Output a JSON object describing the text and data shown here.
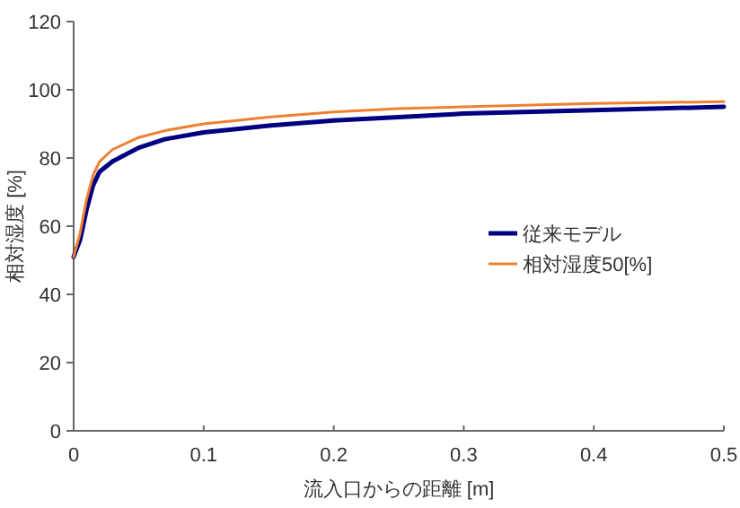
{
  "chart_data": {
    "type": "line",
    "xlabel": "流入口からの距離 [m]",
    "ylabel": "相対湿度 [%]",
    "xlim": [
      0,
      0.5
    ],
    "xticks": [
      0,
      0.1,
      0.2,
      0.3,
      0.4,
      0.5
    ],
    "ylim": [
      0,
      120
    ],
    "yticks": [
      0,
      20,
      40,
      60,
      80,
      100,
      120
    ],
    "grid": false,
    "legend": "right",
    "marker": "none",
    "series": [
      {
        "name": "従来モデル",
        "color": "#000080",
        "x": [
          0,
          0.005,
          0.01,
          0.015,
          0.02,
          0.03,
          0.05,
          0.07,
          0.1,
          0.15,
          0.2,
          0.25,
          0.3,
          0.4,
          0.5
        ],
        "values": [
          51,
          56,
          65,
          72,
          76,
          79,
          83,
          85.5,
          87.5,
          89.5,
          91,
          92,
          93,
          94,
          95
        ]
      },
      {
        "name": "相対湿度50[%]",
        "color": "#f08030",
        "x": [
          0,
          0.005,
          0.01,
          0.015,
          0.02,
          0.03,
          0.05,
          0.07,
          0.1,
          0.15,
          0.2,
          0.25,
          0.3,
          0.4,
          0.5
        ],
        "values": [
          51,
          58,
          68,
          75,
          79,
          82.5,
          86,
          88,
          90,
          92,
          93.5,
          94.5,
          95,
          96,
          96.5
        ]
      }
    ]
  }
}
